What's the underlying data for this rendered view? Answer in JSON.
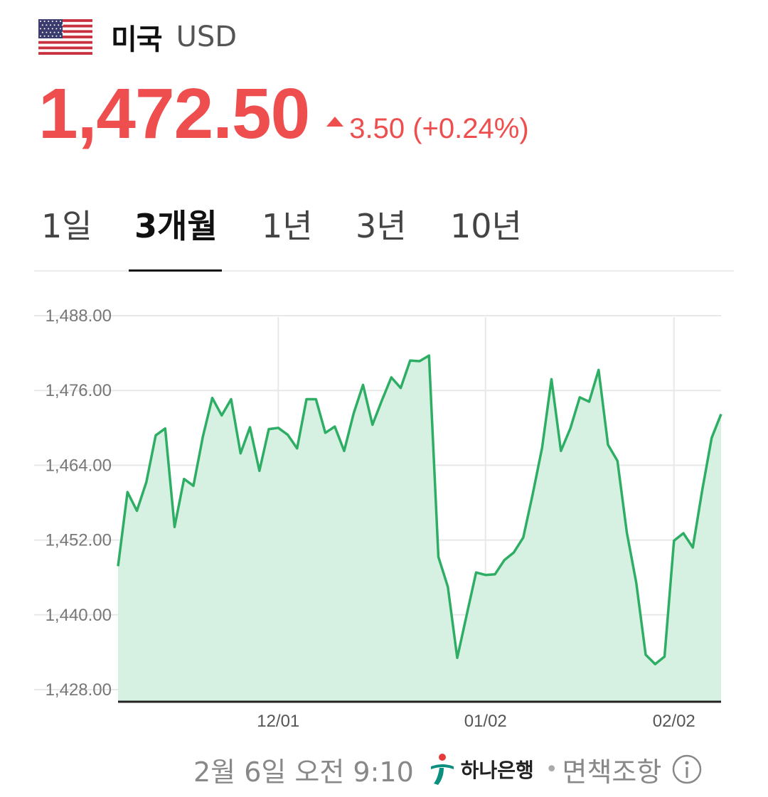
{
  "header": {
    "country": "미국",
    "currency": "USD"
  },
  "quote": {
    "price": "1,472.50",
    "change": "3.50 (+0.24%)",
    "direction": "up"
  },
  "tabs": [
    {
      "label": "1일",
      "active": false
    },
    {
      "label": "3개월",
      "active": true
    },
    {
      "label": "1년",
      "active": false
    },
    {
      "label": "3년",
      "active": false
    },
    {
      "label": "10년",
      "active": false
    }
  ],
  "colors": {
    "price_up": "#ee4e4e",
    "line": "#2eae64",
    "fill": "#d6f1e2"
  },
  "chart_data": {
    "type": "area",
    "x_ticks": [
      "12/01",
      "01/02",
      "02/02"
    ],
    "y_ticks": [
      "1,488.00",
      "1,476.00",
      "1,464.00",
      "1,452.00",
      "1,440.00",
      "1,428.00"
    ],
    "ylim": [
      1428,
      1488
    ],
    "grid": true,
    "values": [
      1447.8,
      1459.7,
      1456.7,
      1461.3,
      1468.8,
      1469.9,
      1454.1,
      1461.8,
      1460.7,
      1468.6,
      1474.8,
      1472.0,
      1474.6,
      1465.9,
      1470.1,
      1463.1,
      1469.8,
      1470.0,
      1468.9,
      1466.7,
      1474.6,
      1474.6,
      1469.2,
      1470.2,
      1466.3,
      1472.3,
      1476.9,
      1470.5,
      1474.4,
      1478.1,
      1476.4,
      1480.8,
      1480.7,
      1481.6,
      1449.3,
      1444.5,
      1433.1,
      1440.0,
      1446.8,
      1446.4,
      1446.5,
      1448.8,
      1450.0,
      1452.4,
      1459.3,
      1466.8,
      1477.8,
      1466.3,
      1469.9,
      1474.9,
      1474.2,
      1479.3,
      1467.3,
      1464.7,
      1453.2,
      1445.1,
      1433.6,
      1432.1,
      1433.3,
      1451.9,
      1453.1,
      1450.8,
      1460.0,
      1468.4,
      1472.2
    ],
    "x_tick_index": [
      17,
      39,
      59
    ]
  },
  "footer": {
    "timestamp": "2월 6일 오전 9:10",
    "bank_name": "하나은행",
    "separator": "•",
    "disclaimer": "면책조항"
  }
}
